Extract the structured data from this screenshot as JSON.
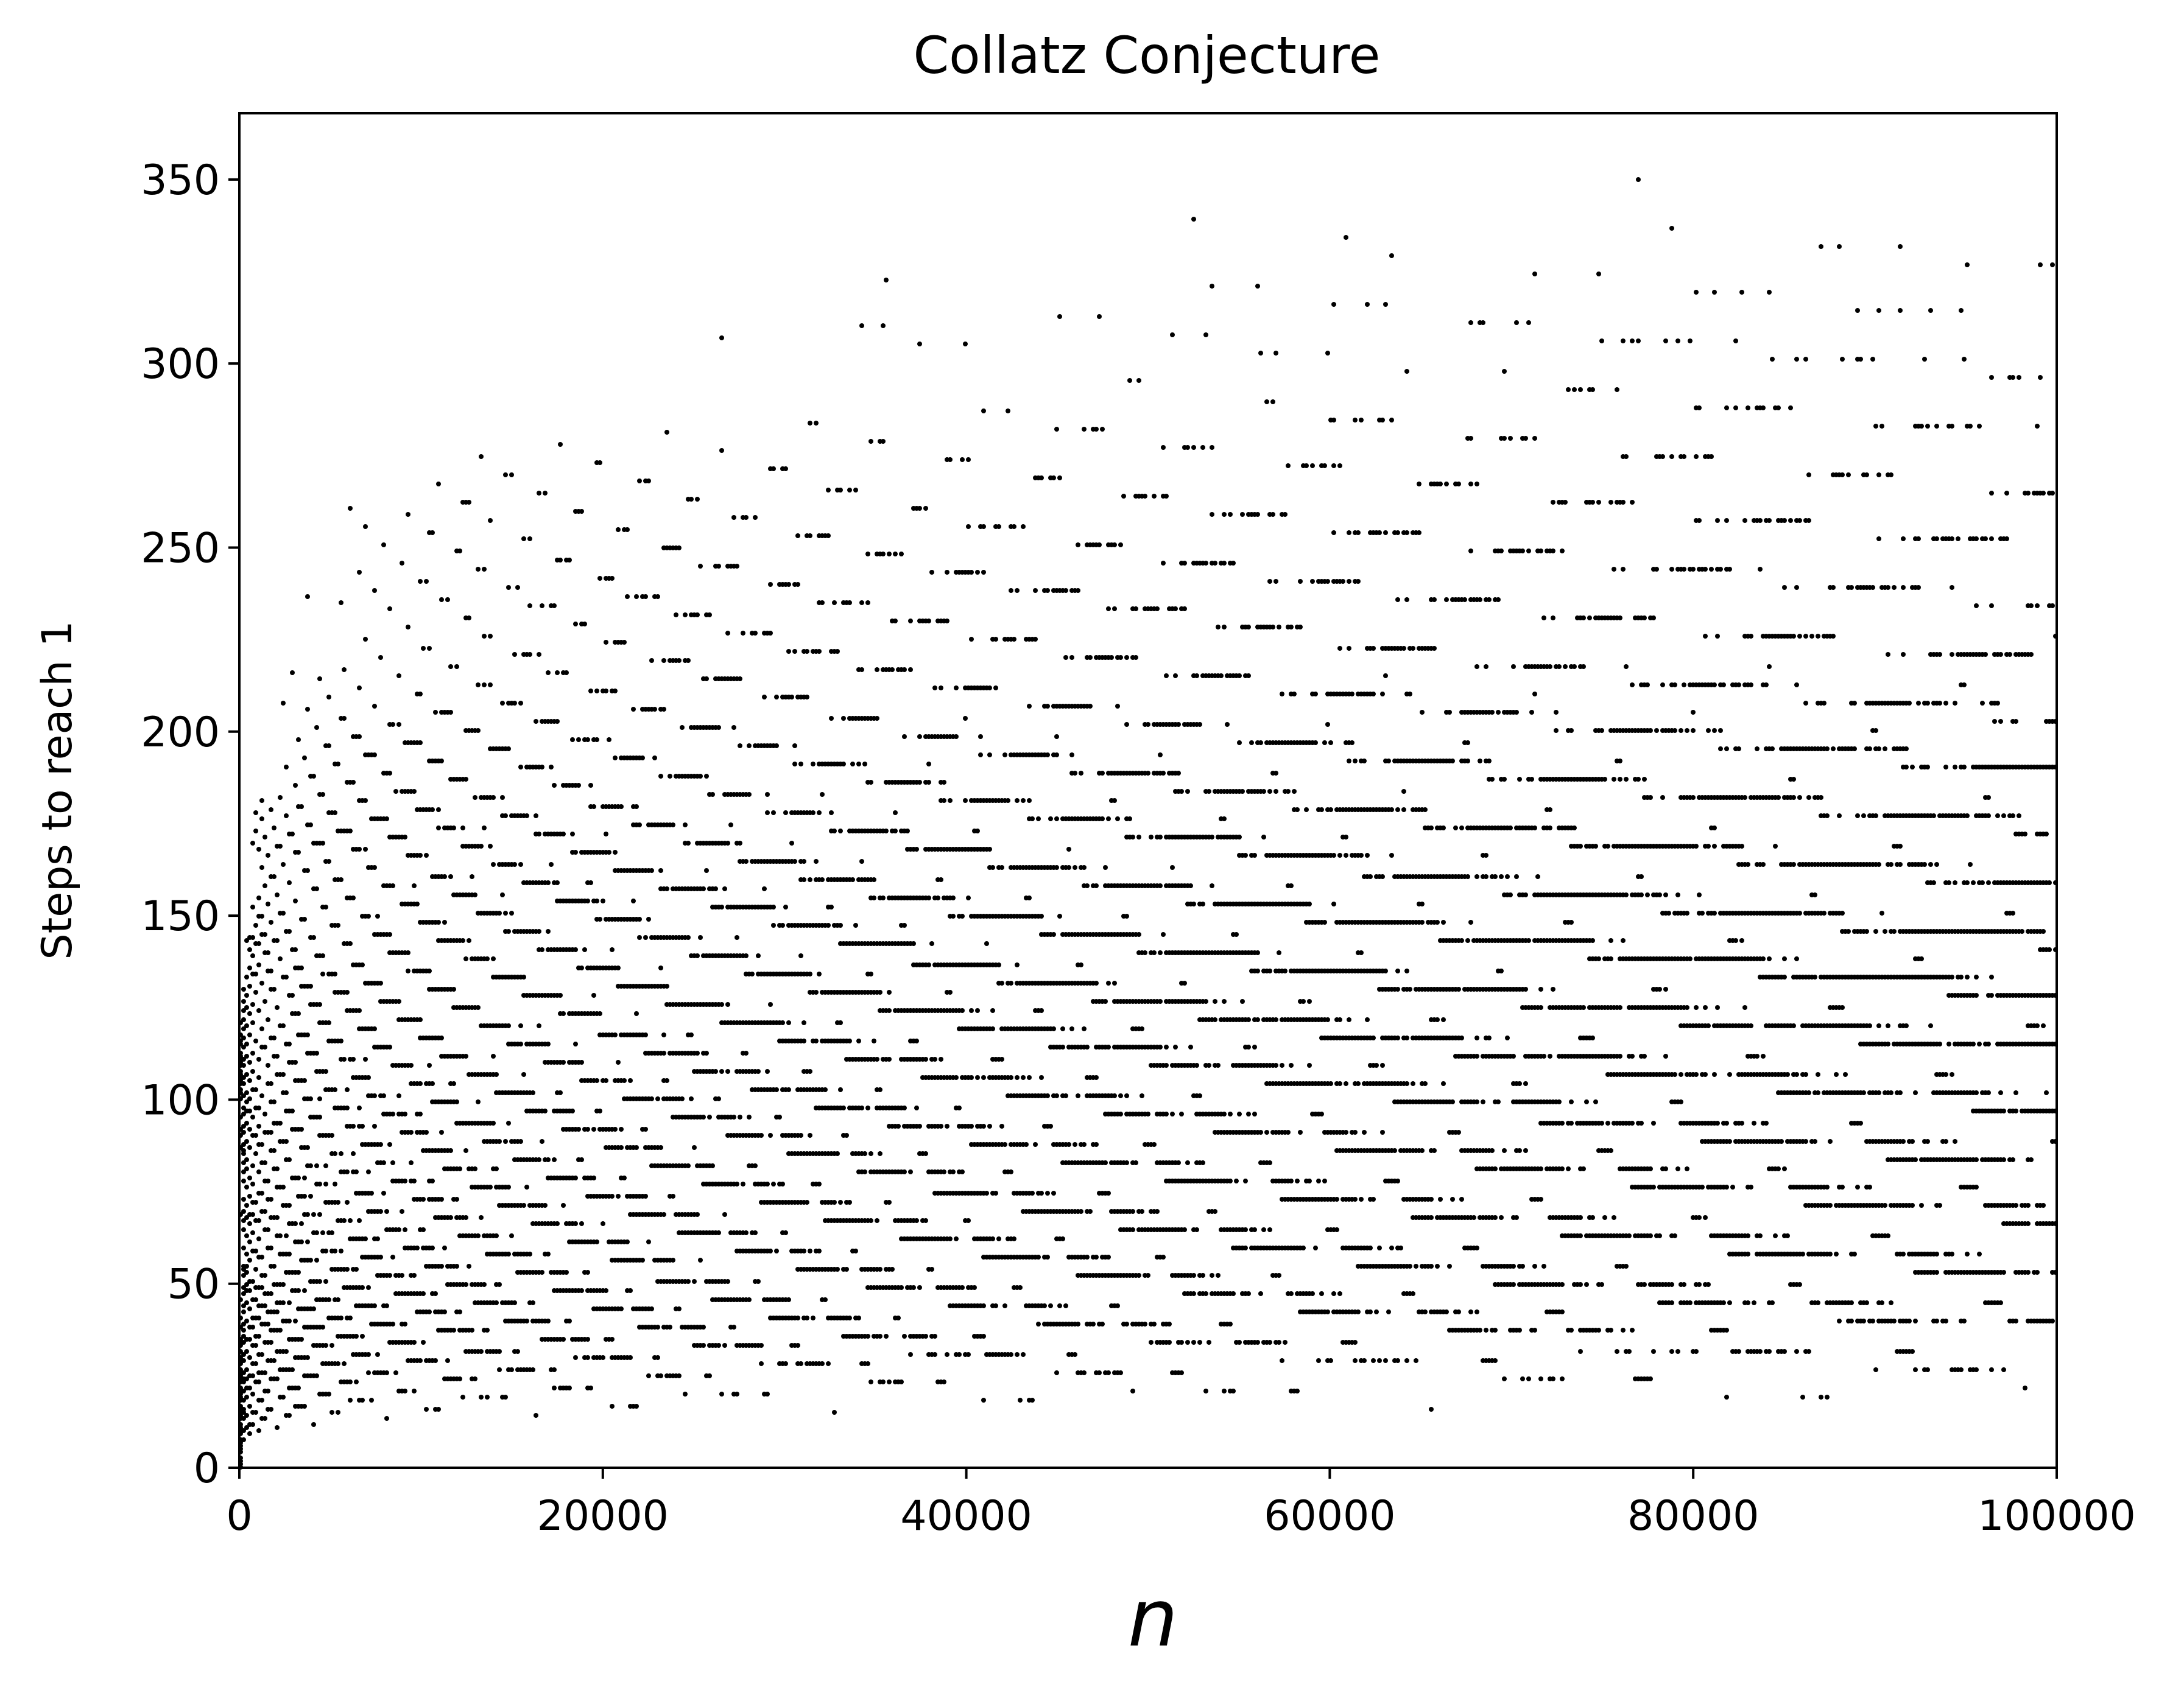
{
  "chart_data": {
    "type": "scatter",
    "title": "Collatz Conjecture",
    "xlabel": "n",
    "ylabel": "Steps to reach 1",
    "xlim": [
      0,
      100000
    ],
    "ylim": [
      0,
      368
    ],
    "xticks": [
      0,
      20000,
      40000,
      60000,
      80000,
      100000
    ],
    "xtick_labels": [
      "0",
      "20000",
      "40000",
      "60000",
      "80000",
      "100000"
    ],
    "yticks": [
      0,
      50,
      100,
      150,
      200,
      250,
      300,
      350
    ],
    "ytick_labels": [
      "0",
      "50",
      "100",
      "150",
      "200",
      "250",
      "300",
      "350"
    ],
    "grid": false,
    "legend": "none",
    "series": [
      {
        "x_range": [
          1,
          100000
        ],
        "y_rule": "number of Collatz steps for n to reach 1",
        "color": "#000000",
        "marker_size": 1
      }
    ]
  }
}
